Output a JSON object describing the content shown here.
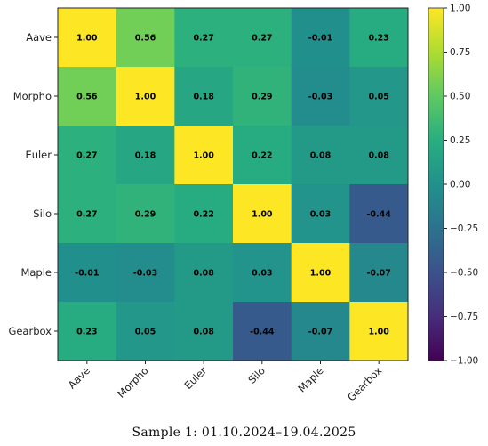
{
  "chart_data": {
    "type": "heatmap",
    "rows": [
      "Aave",
      "Morpho",
      "Euler",
      "Silo",
      "Maple",
      "Gearbox"
    ],
    "columns": [
      "Aave",
      "Morpho",
      "Euler",
      "Silo",
      "Maple",
      "Gearbox"
    ],
    "values": [
      [
        1.0,
        0.56,
        0.27,
        0.27,
        -0.01,
        0.23
      ],
      [
        0.56,
        1.0,
        0.18,
        0.29,
        -0.03,
        0.05
      ],
      [
        0.27,
        0.18,
        1.0,
        0.22,
        0.08,
        0.08
      ],
      [
        0.27,
        0.29,
        0.22,
        1.0,
        0.03,
        -0.44
      ],
      [
        -0.01,
        -0.03,
        0.08,
        0.03,
        1.0,
        -0.07
      ],
      [
        0.23,
        0.05,
        0.08,
        -0.44,
        -0.07,
        1.0
      ]
    ],
    "cell_labels": [
      [
        "1.00",
        "0.56",
        "0.27",
        "0.27",
        "-0.01",
        "0.23"
      ],
      [
        "0.56",
        "1.00",
        "0.18",
        "0.29",
        "-0.03",
        "0.05"
      ],
      [
        "0.27",
        "0.18",
        "1.00",
        "0.22",
        "0.08",
        "0.08"
      ],
      [
        "0.27",
        "0.29",
        "0.22",
        "1.00",
        "0.03",
        "-0.44"
      ],
      [
        "-0.01",
        "-0.03",
        "0.08",
        "0.03",
        "1.00",
        "-0.07"
      ],
      [
        "0.23",
        "0.05",
        "0.08",
        "-0.44",
        "-0.07",
        "1.00"
      ]
    ],
    "colorscale": "viridis",
    "vmin": -1.0,
    "vmax": 1.0,
    "colorbar_ticks": [
      1.0,
      0.75,
      0.5,
      0.25,
      0.0,
      -0.25,
      -0.5,
      -0.75,
      -1.0
    ],
    "colorbar_tick_labels": [
      "1.00",
      "0.75",
      "0.50",
      "0.25",
      "0.00",
      "−0.25",
      "−0.50",
      "−0.75",
      "−1.00"
    ],
    "caption": "Sample 1: 01.10.2024–19.04.2025"
  }
}
